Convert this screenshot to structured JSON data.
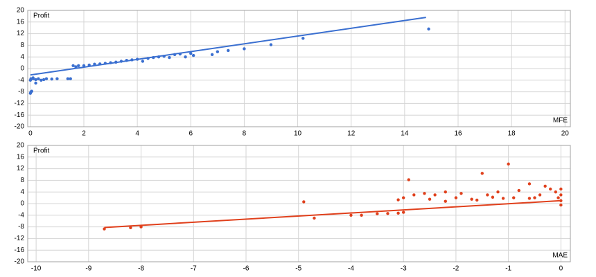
{
  "chart_data": [
    {
      "type": "scatter",
      "y_label": "Profit",
      "x_label": "MFE",
      "xlim": [
        -0.1,
        20.2
      ],
      "ylim": [
        -20,
        20
      ],
      "xticks": [
        0,
        2,
        4,
        6,
        8,
        10,
        12,
        14,
        16,
        18,
        20
      ],
      "yticks": [
        -20,
        -16,
        -12,
        -8,
        -4,
        0,
        4,
        8,
        12,
        16,
        20
      ],
      "grid": true,
      "series": [
        {
          "mode": "markers",
          "color": "#3a6fd0",
          "x": [
            0,
            0.02,
            0.05,
            0,
            0.1,
            0.2,
            0.3,
            0.4,
            0.5,
            0.6,
            0.8,
            1,
            1.4,
            1.5,
            0.2,
            1.6,
            1.7,
            1.8,
            2,
            2.2,
            2.4,
            2.6,
            2.8,
            3,
            3.2,
            3.4,
            3.6,
            3.8,
            4,
            4.2,
            4.4,
            4.6,
            4.8,
            5,
            5.2,
            5.4,
            5.6,
            5.8,
            6,
            6.1,
            6.8,
            7,
            7.4,
            8,
            9,
            10.2,
            14.9,
            0.02,
            0.1
          ],
          "values": [
            -8.5,
            -8,
            -7.8,
            -4,
            -3.5,
            -3.8,
            -3.5,
            -4,
            -3.8,
            -3.5,
            -3.6,
            -3.5,
            -3.5,
            -3.5,
            -5,
            1,
            0.6,
            1,
            1,
            1.2,
            1.5,
            1.6,
            1.8,
            2,
            2.2,
            2.5,
            2.8,
            3,
            3.2,
            2.5,
            3.5,
            3.8,
            4,
            4.2,
            3.8,
            4.8,
            5,
            4,
            5.2,
            4.5,
            4.8,
            5.8,
            6.2,
            6.8,
            8.2,
            10.4,
            13.6,
            -3.5,
            -3.2
          ]
        },
        {
          "mode": "line",
          "color": "#3a6fd0",
          "x": [
            0,
            14.8
          ],
          "values": [
            -2.2,
            17.6
          ]
        }
      ]
    },
    {
      "type": "scatter",
      "y_label": "Profit",
      "x_label": "MAE",
      "xlim": [
        -10.16,
        0.18
      ],
      "ylim": [
        -20,
        20
      ],
      "xticks": [
        -10,
        -9,
        -8,
        -7,
        -6,
        -5,
        -4,
        -3,
        -2,
        -1,
        0
      ],
      "yticks": [
        -20,
        -16,
        -12,
        -8,
        -4,
        0,
        4,
        8,
        12,
        16,
        20
      ],
      "grid": true,
      "series": [
        {
          "mode": "markers",
          "color": "#e0401c",
          "x": [
            -8.7,
            -8.2,
            -8,
            -4.9,
            -4.7,
            -4,
            -3.8,
            -3.5,
            -3.3,
            -3.1,
            -3,
            -3,
            -2.9,
            -2.8,
            -2.6,
            -2.4,
            -2.2,
            -2,
            -1.9,
            -1.7,
            -1.5,
            -1.4,
            -1.2,
            -1,
            -0.9,
            -0.8,
            -0.6,
            -0.5,
            -0.4,
            -0.3,
            -0.2,
            -0.1,
            0,
            0,
            0,
            0,
            -0.05,
            -0.6,
            -1.1,
            -2.5,
            -1.6,
            -2.2,
            -3.1,
            -1.3
          ],
          "values": [
            -8.7,
            -8.3,
            -8,
            0.6,
            -5,
            -4,
            -4,
            -3.5,
            -3.4,
            -3.3,
            -3,
            2,
            8.2,
            3,
            3.5,
            3,
            4,
            2,
            3.5,
            1.5,
            10.4,
            3,
            4,
            13.6,
            2,
            4.5,
            6.8,
            2,
            3,
            6,
            5,
            4,
            5,
            3,
            1,
            -0.5,
            2,
            1.8,
            1.8,
            1.5,
            1.2,
            0.8,
            1.3,
            2.2
          ]
        },
        {
          "mode": "line",
          "color": "#e0401c",
          "x": [
            -8.7,
            0
          ],
          "values": [
            -8.2,
            1
          ]
        }
      ]
    }
  ]
}
